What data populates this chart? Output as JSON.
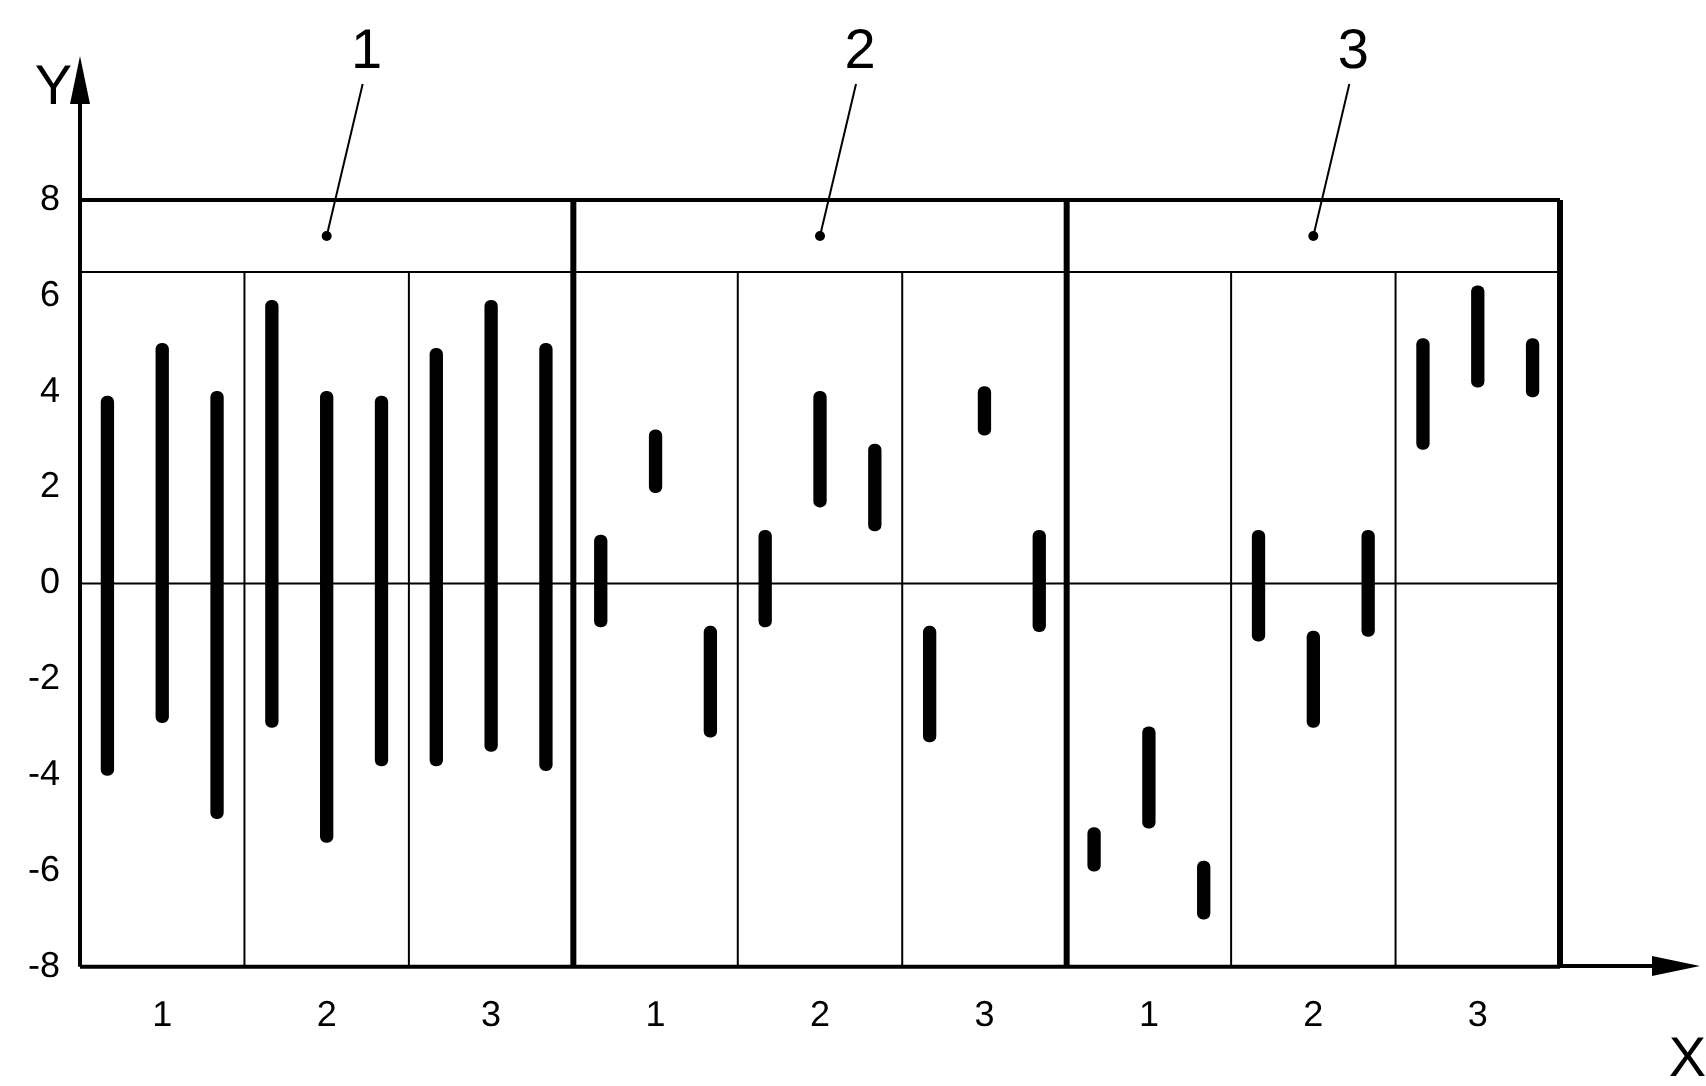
{
  "chart_data": {
    "type": "bar",
    "xlabel": "X",
    "ylabel": "Y",
    "categories": [
      null,
      "1",
      null,
      null,
      "2",
      null,
      null,
      "3",
      null,
      null,
      "1",
      null,
      null,
      "2",
      null,
      null,
      "3",
      null,
      null,
      "1",
      null,
      null,
      "2",
      null,
      null,
      "3",
      null
    ],
    "base": [
      -4,
      -2.9,
      -4.9,
      -3,
      -5.4,
      -3.8,
      -3.8,
      -3.5,
      -3.9,
      -0.9,
      1.9,
      -3.2,
      -0.9,
      1.6,
      1.1,
      -3.3,
      3.1,
      -1,
      -6,
      -5.1,
      -7,
      -1.2,
      -3,
      -1.1,
      2.8,
      4.1,
      3.9
    ],
    "values": [
      7.9,
      7.9,
      8.9,
      8.9,
      9.4,
      7.7,
      8.7,
      9.4,
      8.9,
      1.9,
      1.3,
      2.3,
      2.0,
      2.4,
      1.8,
      2.4,
      1.0,
      2.1,
      0.9,
      2.1,
      1.2,
      2.3,
      2.0,
      2.2,
      2.3,
      2.1,
      1.2
    ],
    "color": "#000000",
    "ylim": [
      -8,
      8
    ],
    "yticks": [
      -8,
      -6,
      -4,
      -2,
      0,
      2,
      4,
      6,
      8
    ],
    "ref_lines": [
      {
        "axis": "y",
        "value": 0
      },
      {
        "axis": "y",
        "value": 6.5
      }
    ],
    "annotations": [
      "1",
      "2",
      "3"
    ],
    "grid": false,
    "legend": false
  }
}
